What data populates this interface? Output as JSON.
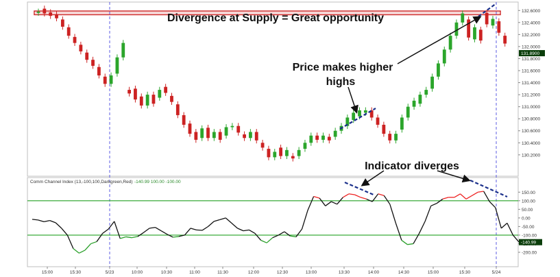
{
  "chart_data": {
    "type": "candlestick",
    "colors": {
      "up": "#2ba52b",
      "down": "#cc2222",
      "cci_normal": "#111111",
      "cci_above": "#ee2222",
      "cci_below": "#2aa02a",
      "level_line": "#23a023",
      "separator": "#4a4ae0",
      "annotation_dash": "#1a2f8a",
      "supply_zone": "#d03030",
      "price_badge_bg": "#0a3d0a",
      "price_badge_fg": "#ffffff"
    },
    "price_axis": {
      "min": 130.05,
      "max": 132.66,
      "ticks": [
        "132.6000",
        "132.4000",
        "132.2000",
        "132.0000",
        "131.8000",
        "131.6000",
        "131.4000",
        "131.2000",
        "131.0000",
        "130.8000",
        "130.6000",
        "130.4000",
        "130.2000"
      ],
      "current_label": "131.8900",
      "current_value": 131.89
    },
    "supply_zone": {
      "low": 132.53,
      "high": 132.59
    },
    "time_axis": {
      "labels": [
        "15:00",
        "15:30",
        "5/23",
        "10:00",
        "10:30",
        "11:00",
        "11:30",
        "12:00",
        "12:30",
        "13:00",
        "13:30",
        "14:00",
        "14:30",
        "15:00",
        "15:30",
        "5/24"
      ]
    },
    "candles": [
      {
        "t": 0,
        "o": 132.56,
        "c": 132.58
      },
      {
        "t": 2,
        "o": 132.63,
        "c": 132.55
      },
      {
        "t": 4,
        "o": 132.57,
        "c": 132.51
      },
      {
        "t": 6,
        "o": 132.54,
        "c": 132.47
      },
      {
        "t": 8,
        "o": 132.45,
        "c": 132.33
      },
      {
        "t": 10,
        "o": 132.32,
        "c": 132.18
      },
      {
        "t": 12,
        "o": 132.16,
        "c": 132.06
      },
      {
        "t": 14,
        "o": 132.03,
        "c": 131.92
      },
      {
        "t": 16,
        "o": 131.9,
        "c": 131.78
      },
      {
        "t": 18,
        "o": 131.78,
        "c": 131.68
      },
      {
        "t": 20,
        "o": 131.66,
        "c": 131.52
      },
      {
        "t": 22,
        "o": 131.5,
        "c": 131.38
      },
      {
        "t": 24,
        "o": 131.38,
        "c": 131.52
      },
      {
        "t": 26,
        "o": 131.55,
        "c": 131.82
      },
      {
        "t": 28,
        "o": 131.82,
        "c": 132.06
      },
      {
        "t": 30,
        "o": 131.28,
        "c": 131.22
      },
      {
        "t": 32,
        "o": 131.3,
        "c": 131.12
      },
      {
        "t": 34,
        "o": 131.17,
        "c": 131.02
      },
      {
        "t": 36,
        "o": 131.02,
        "c": 131.2
      },
      {
        "t": 38,
        "o": 131.2,
        "c": 131.05
      },
      {
        "t": 40,
        "o": 131.15,
        "c": 131.28
      },
      {
        "t": 42,
        "o": 131.33,
        "c": 131.23
      },
      {
        "t": 44,
        "o": 131.18,
        "c": 131.08
      },
      {
        "t": 46,
        "o": 131.04,
        "c": 130.86
      },
      {
        "t": 48,
        "o": 130.86,
        "c": 130.7
      },
      {
        "t": 50,
        "o": 130.72,
        "c": 130.55
      },
      {
        "t": 52,
        "o": 130.58,
        "c": 130.45
      },
      {
        "t": 54,
        "o": 130.48,
        "c": 130.64
      },
      {
        "t": 56,
        "o": 130.65,
        "c": 130.48
      },
      {
        "t": 58,
        "o": 130.48,
        "c": 130.58
      },
      {
        "t": 60,
        "o": 130.58,
        "c": 130.45
      },
      {
        "t": 62,
        "o": 130.52,
        "c": 130.66
      },
      {
        "t": 64,
        "o": 130.66,
        "c": 130.68
      },
      {
        "t": 66,
        "o": 130.68,
        "c": 130.57
      },
      {
        "t": 68,
        "o": 130.54,
        "c": 130.48
      },
      {
        "t": 70,
        "o": 130.48,
        "c": 130.58
      },
      {
        "t": 72,
        "o": 130.58,
        "c": 130.44
      },
      {
        "t": 74,
        "o": 130.4,
        "c": 130.32
      },
      {
        "t": 76,
        "o": 130.3,
        "c": 130.16
      },
      {
        "t": 78,
        "o": 130.16,
        "c": 130.25
      },
      {
        "t": 80,
        "o": 130.32,
        "c": 130.18
      },
      {
        "t": 82,
        "o": 130.18,
        "c": 130.28
      },
      {
        "t": 84,
        "o": 130.18,
        "c": 130.14
      },
      {
        "t": 86,
        "o": 130.18,
        "c": 130.28
      },
      {
        "t": 88,
        "o": 130.3,
        "c": 130.4
      },
      {
        "t": 90,
        "o": 130.4,
        "c": 130.52
      },
      {
        "t": 92,
        "o": 130.52,
        "c": 130.45
      },
      {
        "t": 94,
        "o": 130.45,
        "c": 130.52
      },
      {
        "t": 96,
        "o": 130.5,
        "c": 130.44
      },
      {
        "t": 98,
        "o": 130.5,
        "c": 130.6
      },
      {
        "t": 100,
        "o": 130.6,
        "c": 130.68
      },
      {
        "t": 102,
        "o": 130.68,
        "c": 130.82
      },
      {
        "t": 104,
        "o": 130.78,
        "c": 130.9
      },
      {
        "t": 106,
        "o": 130.84,
        "c": 130.94
      },
      {
        "t": 108,
        "o": 130.9,
        "c": 130.94
      },
      {
        "t": 110,
        "o": 130.94,
        "c": 130.82
      },
      {
        "t": 112,
        "o": 130.82,
        "c": 130.7
      },
      {
        "t": 114,
        "o": 130.7,
        "c": 130.55
      },
      {
        "t": 116,
        "o": 130.55,
        "c": 130.44
      },
      {
        "t": 118,
        "o": 130.44,
        "c": 130.55
      },
      {
        "t": 120,
        "o": 130.62,
        "c": 130.82
      },
      {
        "t": 122,
        "o": 130.82,
        "c": 131.0
      },
      {
        "t": 124,
        "o": 131.0,
        "c": 131.1
      },
      {
        "t": 126,
        "o": 131.05,
        "c": 131.2
      },
      {
        "t": 128,
        "o": 131.2,
        "c": 131.28
      },
      {
        "t": 130,
        "o": 131.3,
        "c": 131.5
      },
      {
        "t": 132,
        "o": 131.5,
        "c": 131.72
      },
      {
        "t": 134,
        "o": 131.72,
        "c": 131.95
      },
      {
        "t": 136,
        "o": 131.95,
        "c": 132.18
      },
      {
        "t": 138,
        "o": 132.18,
        "c": 132.4
      },
      {
        "t": 140,
        "o": 132.4,
        "c": 132.55
      },
      {
        "t": 142,
        "o": 132.45,
        "c": 132.15
      },
      {
        "t": 144,
        "o": 132.12,
        "c": 132.32
      },
      {
        "t": 146,
        "o": 132.28,
        "c": 132.1
      },
      {
        "t": 148,
        "o": 132.56,
        "c": 132.37
      },
      {
        "t": 150,
        "o": 132.35,
        "c": 132.46
      },
      {
        "t": 152,
        "o": 132.42,
        "c": 132.23
      },
      {
        "t": 154,
        "o": 132.18,
        "c": 132.05
      }
    ],
    "cci": {
      "indicator_label": "Comm Channel Index (13,-100,100,Darkgreen,Red)",
      "values_label": "-140.99  100.00  -100.00",
      "ticks": [
        "150.00",
        "100.00",
        "50.00",
        "0.00",
        "-50.00",
        "-100.00",
        "-150.00",
        "-200.00"
      ],
      "current_label": "-140.99",
      "current_value": -140.99,
      "upper": 100,
      "lower": -100,
      "min": -240,
      "max": 175,
      "values": [
        -8,
        -12,
        -22,
        -15,
        -28,
        -60,
        -100,
        -178,
        -205,
        -188,
        -150,
        -138,
        -90,
        -65,
        -20,
        -120,
        -110,
        -115,
        -108,
        -85,
        -60,
        -55,
        -75,
        -95,
        -112,
        -108,
        -100,
        -60,
        -70,
        -72,
        -50,
        -20,
        -10,
        0,
        -30,
        -60,
        -75,
        -70,
        -90,
        -130,
        -145,
        -115,
        -100,
        -80,
        -105,
        -110,
        -65,
        45,
        125,
        115,
        70,
        95,
        80,
        120,
        140,
        135,
        120,
        110,
        95,
        140,
        130,
        80,
        -30,
        -130,
        -155,
        -150,
        -90,
        -20,
        70,
        85,
        110,
        120,
        120,
        140,
        110,
        130,
        150,
        155,
        95,
        60,
        -60,
        -30,
        -100,
        -140
      ]
    },
    "annotations": {
      "title": "Divergence at Supply = Great opportunity",
      "price_note_line1": "Price makes higher",
      "price_note_line2": "highs",
      "indicator_note": "Indicator diverges"
    }
  }
}
